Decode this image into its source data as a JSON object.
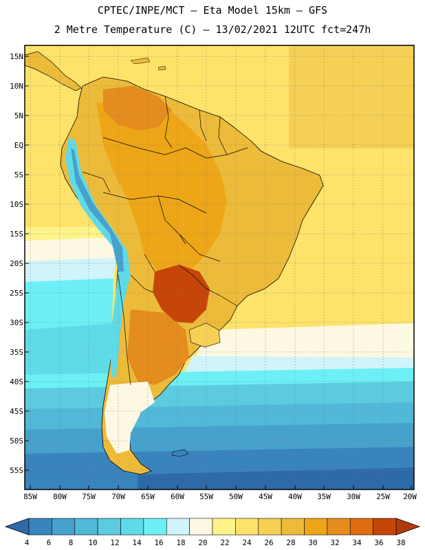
{
  "header": {
    "line1": "CPTEC/INPE/MCT –  Eta Model 15km – GFS",
    "line2": "2 Metre Temperature (C) – 13/02/2021 12UTC fct=247h"
  },
  "map": {
    "lat_labels": [
      "15N",
      "10N",
      "5N",
      "EQ",
      "5S",
      "10S",
      "15S",
      "20S",
      "25S",
      "30S",
      "35S",
      "40S",
      "45S",
      "50S",
      "55S"
    ],
    "lon_labels": [
      "85W",
      "80W",
      "75W",
      "70W",
      "65W",
      "60W",
      "55W",
      "50W",
      "45W",
      "40W",
      "35W",
      "30W",
      "25W",
      "20W"
    ]
  },
  "colorbar": {
    "labels": [
      "4",
      "6",
      "8",
      "10",
      "12",
      "14",
      "16",
      "18",
      "20",
      "22",
      "24",
      "26",
      "28",
      "30",
      "32",
      "34",
      "36",
      "38"
    ],
    "colors": [
      "#2e6aa8",
      "#3a84bd",
      "#46a1cc",
      "#52b8d8",
      "#5ccbe0",
      "#5fdbe8",
      "#6cf0f5",
      "#cff4fb",
      "#fdf8e2",
      "#fef48a",
      "#fde36a",
      "#f5d055",
      "#edbb3a",
      "#eda617",
      "#e58c1e",
      "#e06d10",
      "#c54608",
      "#b33a0a"
    ]
  }
}
